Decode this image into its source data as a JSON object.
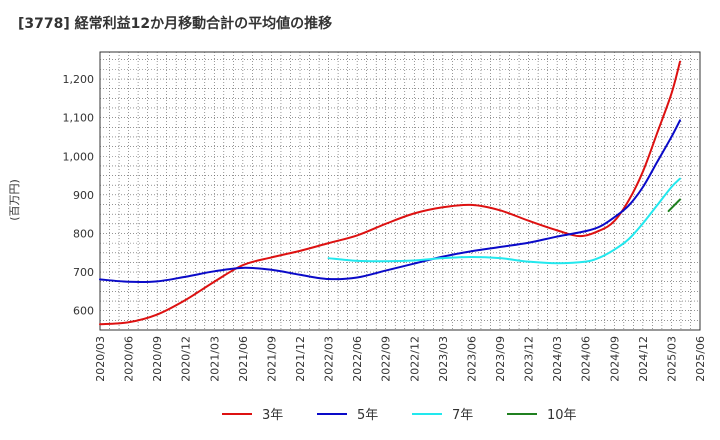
{
  "chart_data": {
    "type": "line",
    "title": "[3778]  経常利益12か月移動合計の平均値の推移",
    "ylabel": "(百万円)",
    "ylim": [
      550,
      1270
    ],
    "yticks": [
      600,
      700,
      800,
      900,
      1000,
      1100,
      1200
    ],
    "ytick_labels": [
      "600",
      "700",
      "800",
      "900",
      "1,000",
      "1,100",
      "1,200"
    ],
    "x_categories": [
      "2020/03",
      "2020/06",
      "2020/09",
      "2020/12",
      "2021/03",
      "2021/06",
      "2021/09",
      "2021/12",
      "2022/03",
      "2022/06",
      "2022/09",
      "2022/12",
      "2023/03",
      "2023/06",
      "2023/09",
      "2023/12",
      "2024/03",
      "2024/06",
      "2024/09",
      "2024/12",
      "2025/03",
      "2025/06"
    ],
    "grid": true,
    "legend_position": "bottom",
    "series": [
      {
        "name": "3年",
        "color": "#dd1111",
        "values": [
          [
            0,
            565
          ],
          [
            1,
            570
          ],
          [
            2,
            590
          ],
          [
            3,
            628
          ],
          [
            4,
            675
          ],
          [
            5,
            718
          ],
          [
            6,
            738
          ],
          [
            7,
            755
          ],
          [
            8,
            775
          ],
          [
            9,
            795
          ],
          [
            10,
            825
          ],
          [
            11,
            852
          ],
          [
            12,
            868
          ],
          [
            13,
            874
          ],
          [
            14,
            860
          ],
          [
            15,
            833
          ],
          [
            16,
            808
          ],
          [
            16.8,
            793
          ],
          [
            17.5,
            808
          ],
          [
            18,
            832
          ],
          [
            18.5,
            885
          ],
          [
            19,
            960
          ],
          [
            19.5,
            1060
          ],
          [
            20,
            1162
          ],
          [
            20.3,
            1245
          ]
        ]
      },
      {
        "name": "5年",
        "color": "#0a0ac8",
        "values": [
          [
            0,
            681
          ],
          [
            1,
            675
          ],
          [
            2,
            676
          ],
          [
            3,
            688
          ],
          [
            4,
            702
          ],
          [
            5,
            711
          ],
          [
            6,
            706
          ],
          [
            7,
            693
          ],
          [
            8,
            682
          ],
          [
            9,
            686
          ],
          [
            10,
            704
          ],
          [
            11,
            722
          ],
          [
            12,
            740
          ],
          [
            13,
            754
          ],
          [
            14,
            765
          ],
          [
            15,
            776
          ],
          [
            16,
            792
          ],
          [
            17,
            806
          ],
          [
            17.5,
            818
          ],
          [
            18,
            842
          ],
          [
            18.5,
            872
          ],
          [
            19,
            920
          ],
          [
            19.5,
            985
          ],
          [
            20,
            1050
          ],
          [
            20.3,
            1093
          ]
        ]
      },
      {
        "name": "7年",
        "color": "#22e8ee",
        "values": [
          [
            8,
            736
          ],
          [
            9,
            729
          ],
          [
            10,
            728
          ],
          [
            11,
            730
          ],
          [
            12,
            736
          ],
          [
            13,
            739
          ],
          [
            14,
            736
          ],
          [
            15,
            727
          ],
          [
            16,
            723
          ],
          [
            17,
            727
          ],
          [
            17.5,
            738
          ],
          [
            18,
            758
          ],
          [
            18.5,
            785
          ],
          [
            19,
            826
          ],
          [
            19.5,
            873
          ],
          [
            20,
            920
          ],
          [
            20.3,
            942
          ]
        ]
      },
      {
        "name": "10年",
        "color": "#208020",
        "values": [
          [
            19.9,
            858
          ],
          [
            20.3,
            888
          ]
        ]
      }
    ]
  }
}
